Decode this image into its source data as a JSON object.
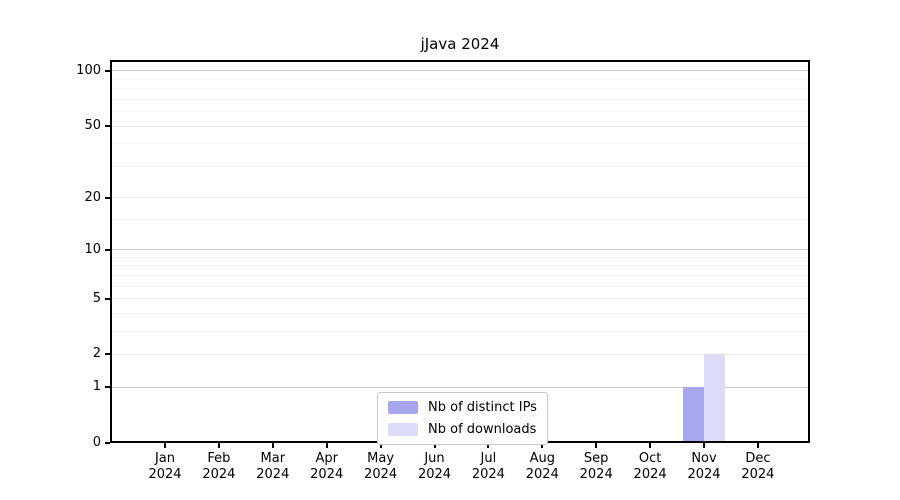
{
  "chart_data": {
    "type": "bar",
    "title": "jJava 2024",
    "categories": [
      "Jan",
      "Feb",
      "Mar",
      "Apr",
      "May",
      "Jun",
      "Jul",
      "Aug",
      "Sep",
      "Oct",
      "Nov",
      "Dec"
    ],
    "category_year": "2024",
    "series": [
      {
        "name": "Nb of distinct IPs",
        "color": "#a7a7f0",
        "values": [
          0,
          0,
          0,
          0,
          0,
          0,
          0,
          0,
          0,
          0,
          1,
          0
        ]
      },
      {
        "name": "Nb of downloads",
        "color": "#dcdcf8",
        "values": [
          0,
          0,
          0,
          0,
          0,
          0,
          0,
          0,
          0,
          0,
          2,
          0
        ]
      }
    ],
    "xlabel": "",
    "ylabel": "",
    "y_scale": "log10(y+1)",
    "y_ticks_major": [
      0,
      1,
      2,
      5,
      10,
      20,
      50,
      100
    ],
    "y_ticks_minor": [
      3,
      4,
      6,
      7,
      8,
      9,
      15,
      30,
      40,
      60,
      70,
      80,
      90
    ],
    "ylim": [
      0,
      114
    ],
    "grid": "horizontal",
    "legend_position": "lower center",
    "colors": {
      "grid_dark": "#c8c8c8",
      "grid_mid": "#e8e8e8",
      "grid_minor": "#f4f4f4",
      "axis": "#000000",
      "text": "#000000",
      "background": "#ffffff"
    }
  }
}
